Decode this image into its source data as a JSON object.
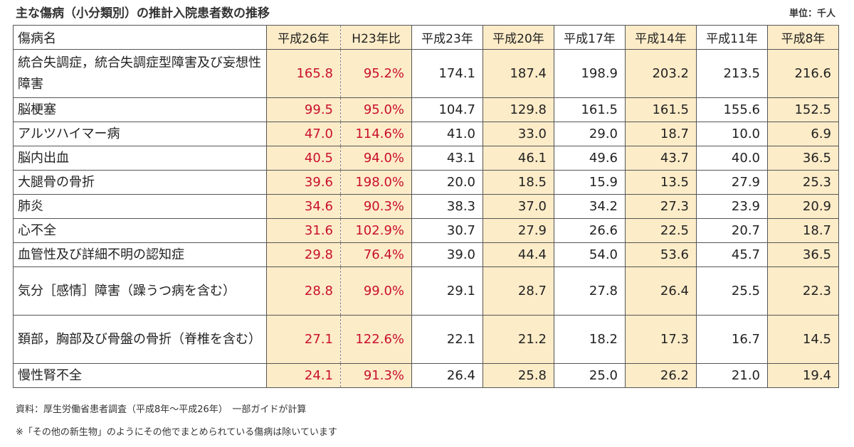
{
  "title": "主な傷病（小分類別）の推計入院患者数の推移",
  "unit": "単位：千人",
  "table": {
    "headers": [
      "傷病名",
      "平成26年",
      "H23年比",
      "平成23年",
      "平成20年",
      "平成17年",
      "平成14年",
      "平成11年",
      "平成8年"
    ],
    "rows": [
      {
        "name": "統合失調症，統合失調症型障害及び妄想性障害",
        "cells": [
          "165.8",
          "95.2%",
          "174.1",
          "187.4",
          "198.9",
          "203.2",
          "213.5",
          "216.6"
        ]
      },
      {
        "name": "脳梗塞",
        "cells": [
          "99.5",
          "95.0%",
          "104.7",
          "129.8",
          "161.5",
          "161.5",
          "155.6",
          "152.5"
        ]
      },
      {
        "name": "アルツハイマー病",
        "cells": [
          "47.0",
          "114.6%",
          "41.0",
          "33.0",
          "29.0",
          "18.7",
          "10.0",
          "6.9"
        ]
      },
      {
        "name": "脳内出血",
        "cells": [
          "40.5",
          "94.0%",
          "43.1",
          "46.1",
          "49.6",
          "43.7",
          "40.0",
          "36.5"
        ]
      },
      {
        "name": "大腿骨の骨折",
        "cells": [
          "39.6",
          "198.0%",
          "20.0",
          "18.5",
          "15.9",
          "13.5",
          "27.9",
          "25.3"
        ]
      },
      {
        "name": "肺炎",
        "cells": [
          "34.6",
          "90.3%",
          "38.3",
          "37.0",
          "34.2",
          "27.3",
          "23.9",
          "20.9"
        ]
      },
      {
        "name": "心不全",
        "cells": [
          "31.6",
          "102.9%",
          "30.7",
          "27.9",
          "26.6",
          "22.5",
          "20.7",
          "18.7"
        ]
      },
      {
        "name": "血管性及び詳細不明の認知症",
        "cells": [
          "29.8",
          "76.4%",
          "39.0",
          "44.4",
          "54.0",
          "53.6",
          "45.7",
          "36.5"
        ]
      },
      {
        "name": "気分［感情］障害（躁うつ病を含む）",
        "cells": [
          "28.8",
          "99.0%",
          "29.1",
          "28.7",
          "27.8",
          "26.4",
          "25.5",
          "22.3"
        ]
      },
      {
        "name": "頚部，胸部及び骨盤の骨折（脊椎を含む）",
        "cells": [
          "27.1",
          "122.6%",
          "22.1",
          "21.2",
          "18.2",
          "17.3",
          "16.7",
          "14.5"
        ]
      },
      {
        "name": "慢性腎不全",
        "cells": [
          "24.1",
          "91.3%",
          "26.4",
          "25.8",
          "25.0",
          "26.2",
          "21.0",
          "19.4"
        ]
      }
    ]
  },
  "source": "資料：厚生労働省患者調査（平成8年〜平成26年）　一部ガイドが計算",
  "note": "※「その他の新生物」のようにその他でまとめられている傷病は除いています",
  "colors": {
    "highlight_bg": "#fdecc8",
    "highlight_text": "#c8102e"
  }
}
